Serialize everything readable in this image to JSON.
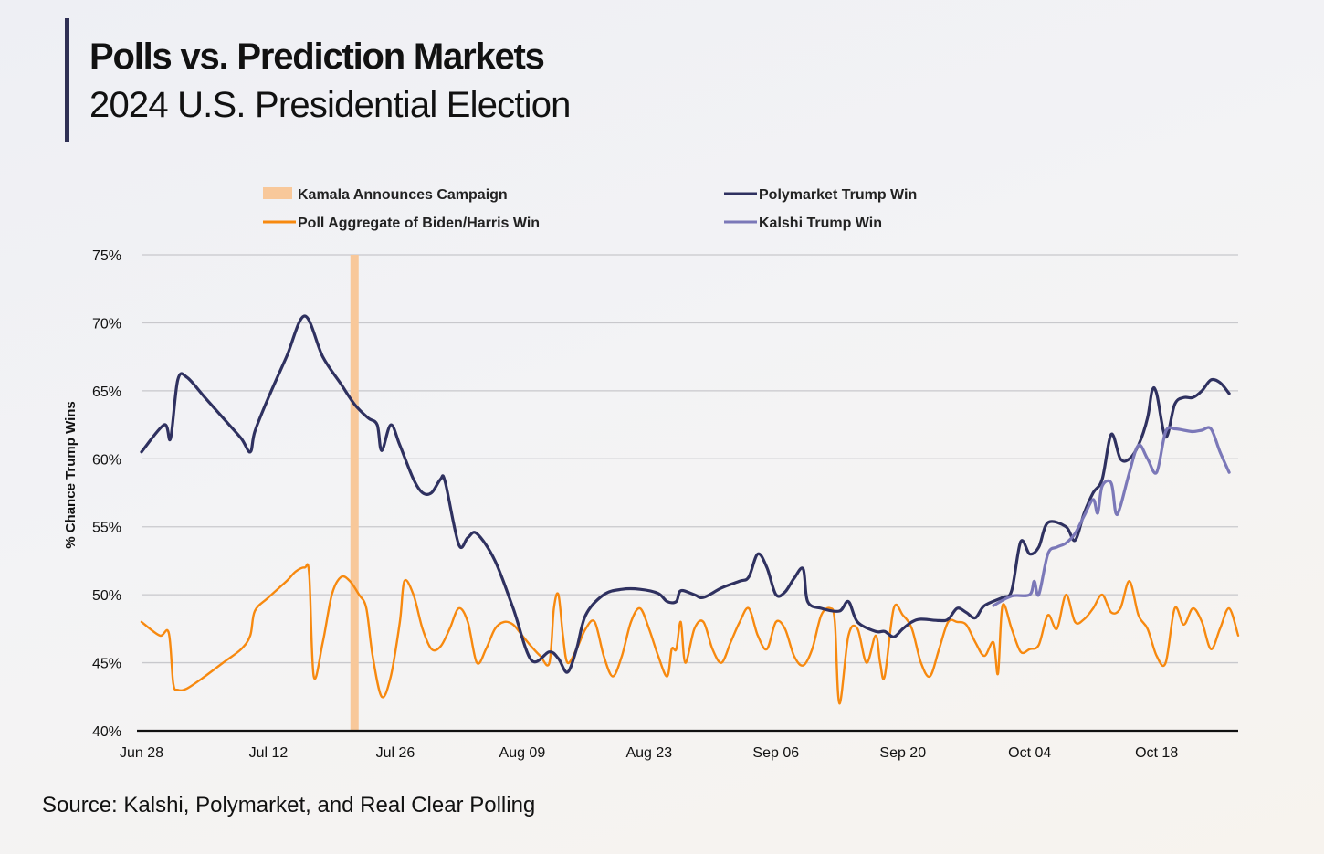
{
  "header": {
    "title": "Polls vs. Prediction Markets",
    "subtitle": "2024 U.S. Presidential Election"
  },
  "footer": {
    "source": "Source: Kalshi, Polymarket, and Real Clear Polling"
  },
  "colors": {
    "polymarket": "#2f3160",
    "kalshi": "#7b78b8",
    "poll": "#f7890f",
    "kamala_band": "#f8c89a",
    "grid": "#c8c8cc",
    "axis": "#111111",
    "title_bar": "#2f3054"
  },
  "chart_data": {
    "type": "line",
    "title": "Polls vs. Prediction Markets",
    "subtitle": "2024 U.S. Presidential Election",
    "ylabel": "% Chance Trump Wins",
    "xlabel": "",
    "ylim": [
      40,
      75
    ],
    "yticks": [
      "40%",
      "45%",
      "50%",
      "55%",
      "60%",
      "65%",
      "70%",
      "75%"
    ],
    "xticks": [
      "Jun 28",
      "Jul 12",
      "Jul 26",
      "Aug 09",
      "Aug 23",
      "Sep 06",
      "Sep 20",
      "Oct 04",
      "Oct 18"
    ],
    "x_unit": "days after Jun 28",
    "grid": "horizontal",
    "legend_position": "top",
    "legend": [
      "Kamala Announces Campaign",
      "Polymarket Trump Win",
      "Poll Aggregate of Biden/Harris Win",
      "Kalshi Trump Win"
    ],
    "annotation": {
      "label": "Kamala Announces Campaign",
      "x": 23.5
    },
    "series": [
      {
        "name": "Polymarket Trump Win",
        "points": [
          [
            0,
            60.5
          ],
          [
            2.5,
            62.5
          ],
          [
            3.2,
            61.5
          ],
          [
            4,
            65.8
          ],
          [
            5,
            66
          ],
          [
            7,
            64.5
          ],
          [
            9,
            63
          ],
          [
            11,
            61.5
          ],
          [
            12,
            60.5
          ],
          [
            12.5,
            62
          ],
          [
            14,
            64.5
          ],
          [
            16,
            67.5
          ],
          [
            18,
            70.5
          ],
          [
            20,
            67.5
          ],
          [
            22,
            65.5
          ],
          [
            23.5,
            64
          ],
          [
            25,
            63
          ],
          [
            26,
            62.5
          ],
          [
            26.5,
            60.6
          ],
          [
            27.5,
            62.5
          ],
          [
            28.5,
            61
          ],
          [
            30,
            58.5
          ],
          [
            31,
            57.5
          ],
          [
            32,
            57.5
          ],
          [
            33,
            58.5
          ],
          [
            33.5,
            58.3
          ],
          [
            35,
            53.7
          ],
          [
            36,
            54.2
          ],
          [
            37,
            54.5
          ],
          [
            39,
            52.5
          ],
          [
            41,
            49
          ],
          [
            43,
            45.2
          ],
          [
            45,
            45.8
          ],
          [
            46,
            45.3
          ],
          [
            47,
            44.3
          ],
          [
            48,
            46
          ],
          [
            49,
            48.5
          ],
          [
            51,
            50
          ],
          [
            53,
            50.4
          ],
          [
            55,
            50.4
          ],
          [
            57,
            50.1
          ],
          [
            58,
            49.5
          ],
          [
            59,
            49.5
          ],
          [
            59.5,
            50.3
          ],
          [
            61,
            50
          ],
          [
            62,
            49.8
          ],
          [
            64,
            50.5
          ],
          [
            66,
            51
          ],
          [
            67,
            51.3
          ],
          [
            68,
            53
          ],
          [
            69,
            52
          ],
          [
            70,
            50
          ],
          [
            71,
            50.2
          ],
          [
            72,
            51.2
          ],
          [
            73,
            51.9
          ],
          [
            73.5,
            49.5
          ],
          [
            75,
            49
          ],
          [
            77,
            48.8
          ],
          [
            78,
            49.5
          ],
          [
            79,
            48
          ],
          [
            81,
            47.3
          ],
          [
            82,
            47.3
          ],
          [
            83,
            46.9
          ],
          [
            84,
            47.5
          ],
          [
            85,
            48
          ],
          [
            86,
            48.2
          ],
          [
            88,
            48.1
          ],
          [
            89,
            48.2
          ],
          [
            90,
            49
          ],
          [
            91,
            48.7
          ],
          [
            92,
            48.3
          ],
          [
            93,
            49.2
          ],
          [
            95,
            49.8
          ],
          [
            96,
            50.3
          ],
          [
            97,
            53.9
          ],
          [
            98,
            53
          ],
          [
            99,
            53.5
          ],
          [
            100,
            55.3
          ],
          [
            102,
            55
          ],
          [
            103,
            54
          ],
          [
            104,
            56
          ],
          [
            105,
            57.5
          ],
          [
            106,
            58.5
          ],
          [
            107,
            61.8
          ],
          [
            108,
            60
          ],
          [
            109,
            60
          ],
          [
            110,
            61
          ],
          [
            111,
            63
          ],
          [
            111.5,
            65
          ],
          [
            112,
            64.8
          ],
          [
            113,
            61.6
          ],
          [
            114,
            64
          ],
          [
            115,
            64.5
          ],
          [
            116,
            64.5
          ],
          [
            117,
            65
          ],
          [
            118,
            65.8
          ],
          [
            119,
            65.6
          ],
          [
            120,
            64.8
          ]
        ]
      },
      {
        "name": "Kalshi Trump Win",
        "points": [
          [
            94,
            49.2
          ],
          [
            96,
            49.9
          ],
          [
            98,
            50
          ],
          [
            98.5,
            51
          ],
          [
            99,
            50
          ],
          [
            100,
            53
          ],
          [
            101,
            53.5
          ],
          [
            102,
            53.8
          ],
          [
            103,
            54.5
          ],
          [
            104,
            55.8
          ],
          [
            105,
            57
          ],
          [
            105.5,
            56
          ],
          [
            106,
            58
          ],
          [
            107,
            58.2
          ],
          [
            107.5,
            56
          ],
          [
            108,
            56.5
          ],
          [
            109,
            59
          ],
          [
            110,
            61
          ],
          [
            111,
            60
          ],
          [
            112,
            59
          ],
          [
            113,
            62
          ],
          [
            114,
            62.2
          ],
          [
            115,
            62.1
          ],
          [
            116,
            62
          ],
          [
            117,
            62.1
          ],
          [
            118,
            62.2
          ],
          [
            119,
            60.5
          ],
          [
            120,
            59
          ]
        ]
      },
      {
        "name": "Poll Aggregate of Biden/Harris Win",
        "points": [
          [
            0,
            48
          ],
          [
            2,
            47
          ],
          [
            3,
            47.2
          ],
          [
            3.5,
            43.5
          ],
          [
            4,
            43
          ],
          [
            5,
            43.1
          ],
          [
            7,
            44
          ],
          [
            9,
            45
          ],
          [
            11,
            46
          ],
          [
            12,
            47
          ],
          [
            12.5,
            48.8
          ],
          [
            14,
            49.8
          ],
          [
            16,
            51
          ],
          [
            17,
            51.7
          ],
          [
            18,
            52
          ],
          [
            18.5,
            51.5
          ],
          [
            19,
            44
          ],
          [
            20,
            46.5
          ],
          [
            21,
            50
          ],
          [
            22,
            51.3
          ],
          [
            23,
            51
          ],
          [
            24,
            50
          ],
          [
            24.8,
            49
          ],
          [
            25.5,
            45.5
          ],
          [
            26.5,
            42.5
          ],
          [
            27.5,
            44
          ],
          [
            28.5,
            48
          ],
          [
            29,
            51
          ],
          [
            30,
            50
          ],
          [
            31,
            47.5
          ],
          [
            32,
            46
          ],
          [
            33,
            46.2
          ],
          [
            34,
            47.5
          ],
          [
            35,
            49
          ],
          [
            36,
            48
          ],
          [
            37,
            45
          ],
          [
            38,
            46
          ],
          [
            39,
            47.5
          ],
          [
            40,
            48
          ],
          [
            41,
            47.8
          ],
          [
            42,
            47
          ],
          [
            43,
            46.2
          ],
          [
            44,
            45.5
          ],
          [
            45,
            45
          ],
          [
            45.5,
            49
          ],
          [
            46,
            50
          ],
          [
            46.5,
            47
          ],
          [
            47,
            45
          ],
          [
            48,
            46
          ],
          [
            49,
            47.5
          ],
          [
            50,
            48
          ],
          [
            51,
            45.5
          ],
          [
            52,
            44
          ],
          [
            53,
            45.5
          ],
          [
            54,
            48
          ],
          [
            55,
            49
          ],
          [
            56,
            47.5
          ],
          [
            57,
            45.5
          ],
          [
            58,
            44
          ],
          [
            58.5,
            46
          ],
          [
            59,
            46
          ],
          [
            59.5,
            48
          ],
          [
            60,
            45
          ],
          [
            61,
            47.5
          ],
          [
            62,
            48
          ],
          [
            63,
            46
          ],
          [
            64,
            45
          ],
          [
            65,
            46.5
          ],
          [
            66,
            48
          ],
          [
            67,
            49
          ],
          [
            68,
            47
          ],
          [
            69,
            46
          ],
          [
            70,
            48
          ],
          [
            71,
            47.5
          ],
          [
            72,
            45.5
          ],
          [
            73,
            44.8
          ],
          [
            74,
            46
          ],
          [
            75,
            48.5
          ],
          [
            76,
            49
          ],
          [
            76.5,
            48
          ],
          [
            77,
            42
          ],
          [
            78,
            47
          ],
          [
            79,
            47.5
          ],
          [
            80,
            45
          ],
          [
            81,
            47
          ],
          [
            81.5,
            45
          ],
          [
            82,
            44
          ],
          [
            83,
            49
          ],
          [
            84,
            48.5
          ],
          [
            85,
            47.5
          ],
          [
            86,
            45
          ],
          [
            87,
            44
          ],
          [
            88,
            46
          ],
          [
            89,
            48
          ],
          [
            90,
            48
          ],
          [
            91,
            47.8
          ],
          [
            92,
            46.5
          ],
          [
            93,
            45.5
          ],
          [
            94,
            46.5
          ],
          [
            94.5,
            44.2
          ],
          [
            95,
            49.2
          ],
          [
            96,
            47.5
          ],
          [
            97,
            45.8
          ],
          [
            98,
            46
          ],
          [
            99,
            46.3
          ],
          [
            100,
            48.5
          ],
          [
            101,
            47.5
          ],
          [
            102,
            50
          ],
          [
            103,
            48
          ],
          [
            104,
            48.2
          ],
          [
            105,
            49
          ],
          [
            106,
            50
          ],
          [
            107,
            48.7
          ],
          [
            108,
            49
          ],
          [
            109,
            51
          ],
          [
            110,
            48.5
          ],
          [
            111,
            47.5
          ],
          [
            112,
            45.5
          ],
          [
            113,
            45
          ],
          [
            114,
            49
          ],
          [
            115,
            47.8
          ],
          [
            116,
            49
          ],
          [
            117,
            48
          ],
          [
            118,
            46
          ],
          [
            119,
            47.5
          ],
          [
            120,
            49
          ],
          [
            121,
            47
          ]
        ]
      }
    ]
  }
}
